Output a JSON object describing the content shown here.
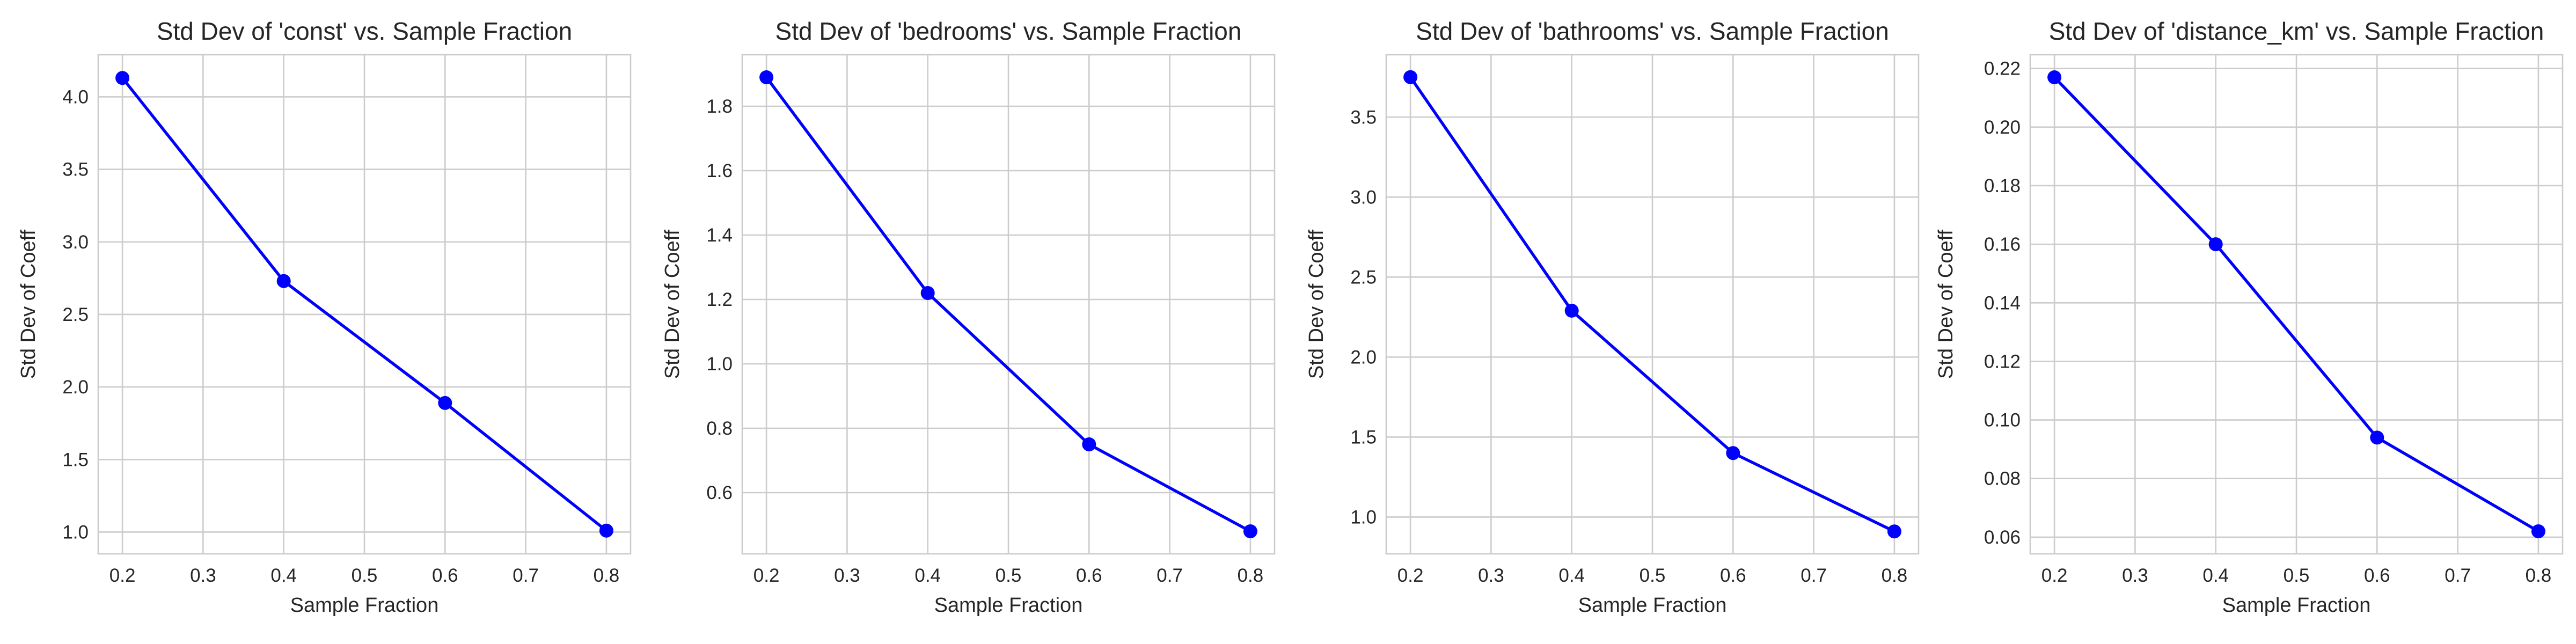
{
  "chart_data": [
    {
      "type": "line",
      "title": "Std Dev of 'const' vs. Sample Fraction",
      "xlabel": "Sample Fraction",
      "ylabel": "Std Dev of Coeff",
      "x": [
        0.2,
        0.4,
        0.6,
        0.8
      ],
      "series": [
        {
          "values": [
            4.13,
            2.73,
            1.89,
            1.01
          ],
          "color": "#0000ff"
        }
      ],
      "xlim": [
        0.17,
        0.83
      ],
      "ylim": [
        0.85,
        4.29
      ],
      "xticks": [
        0.2,
        0.3,
        0.4,
        0.5,
        0.6,
        0.7,
        0.8
      ],
      "xtick_labels": [
        "0.2",
        "0.3",
        "0.4",
        "0.5",
        "0.6",
        "0.7",
        "0.8"
      ],
      "yticks": [
        1.0,
        1.5,
        2.0,
        2.5,
        3.0,
        3.5,
        4.0
      ],
      "ytick_labels": [
        "1.0",
        "1.5",
        "2.0",
        "2.5",
        "3.0",
        "3.5",
        "4.0"
      ],
      "grid": true,
      "marker": "circle"
    },
    {
      "type": "line",
      "title": "Std Dev of 'bedrooms' vs. Sample Fraction",
      "xlabel": "Sample Fraction",
      "ylabel": "Std Dev of Coeff",
      "x": [
        0.2,
        0.4,
        0.6,
        0.8
      ],
      "series": [
        {
          "values": [
            1.89,
            1.22,
            0.75,
            0.48
          ],
          "color": "#0000ff"
        }
      ],
      "xlim": [
        0.17,
        0.83
      ],
      "ylim": [
        0.41,
        1.96
      ],
      "xticks": [
        0.2,
        0.3,
        0.4,
        0.5,
        0.6,
        0.7,
        0.8
      ],
      "xtick_labels": [
        "0.2",
        "0.3",
        "0.4",
        "0.5",
        "0.6",
        "0.7",
        "0.8"
      ],
      "yticks": [
        0.6,
        0.8,
        1.0,
        1.2,
        1.4,
        1.6,
        1.8
      ],
      "ytick_labels": [
        "0.6",
        "0.8",
        "1.0",
        "1.2",
        "1.4",
        "1.6",
        "1.8"
      ],
      "grid": true,
      "marker": "circle"
    },
    {
      "type": "line",
      "title": "Std Dev of 'bathrooms' vs. Sample Fraction",
      "xlabel": "Sample Fraction",
      "ylabel": "Std Dev of Coeff",
      "x": [
        0.2,
        0.4,
        0.6,
        0.8
      ],
      "series": [
        {
          "values": [
            3.75,
            2.29,
            1.4,
            0.91
          ],
          "color": "#0000ff"
        }
      ],
      "xlim": [
        0.17,
        0.83
      ],
      "ylim": [
        0.77,
        3.89
      ],
      "xticks": [
        0.2,
        0.3,
        0.4,
        0.5,
        0.6,
        0.7,
        0.8
      ],
      "xtick_labels": [
        "0.2",
        "0.3",
        "0.4",
        "0.5",
        "0.6",
        "0.7",
        "0.8"
      ],
      "yticks": [
        1.0,
        1.5,
        2.0,
        2.5,
        3.0,
        3.5
      ],
      "ytick_labels": [
        "1.0",
        "1.5",
        "2.0",
        "2.5",
        "3.0",
        "3.5"
      ],
      "grid": true,
      "marker": "circle"
    },
    {
      "type": "line",
      "title": "Std Dev of 'distance_km' vs. Sample Fraction",
      "xlabel": "Sample Fraction",
      "ylabel": "Std Dev of Coeff",
      "x": [
        0.2,
        0.4,
        0.6,
        0.8
      ],
      "series": [
        {
          "values": [
            0.217,
            0.16,
            0.094,
            0.062
          ],
          "color": "#0000ff"
        }
      ],
      "xlim": [
        0.17,
        0.83
      ],
      "ylim": [
        0.0543,
        0.2247
      ],
      "xticks": [
        0.2,
        0.3,
        0.4,
        0.5,
        0.6,
        0.7,
        0.8
      ],
      "xtick_labels": [
        "0.2",
        "0.3",
        "0.4",
        "0.5",
        "0.6",
        "0.7",
        "0.8"
      ],
      "yticks": [
        0.06,
        0.08,
        0.1,
        0.12,
        0.14,
        0.16,
        0.18,
        0.2,
        0.22
      ],
      "ytick_labels": [
        "0.06",
        "0.08",
        "0.10",
        "0.12",
        "0.14",
        "0.16",
        "0.18",
        "0.20",
        "0.22"
      ],
      "grid": true,
      "marker": "circle"
    }
  ]
}
